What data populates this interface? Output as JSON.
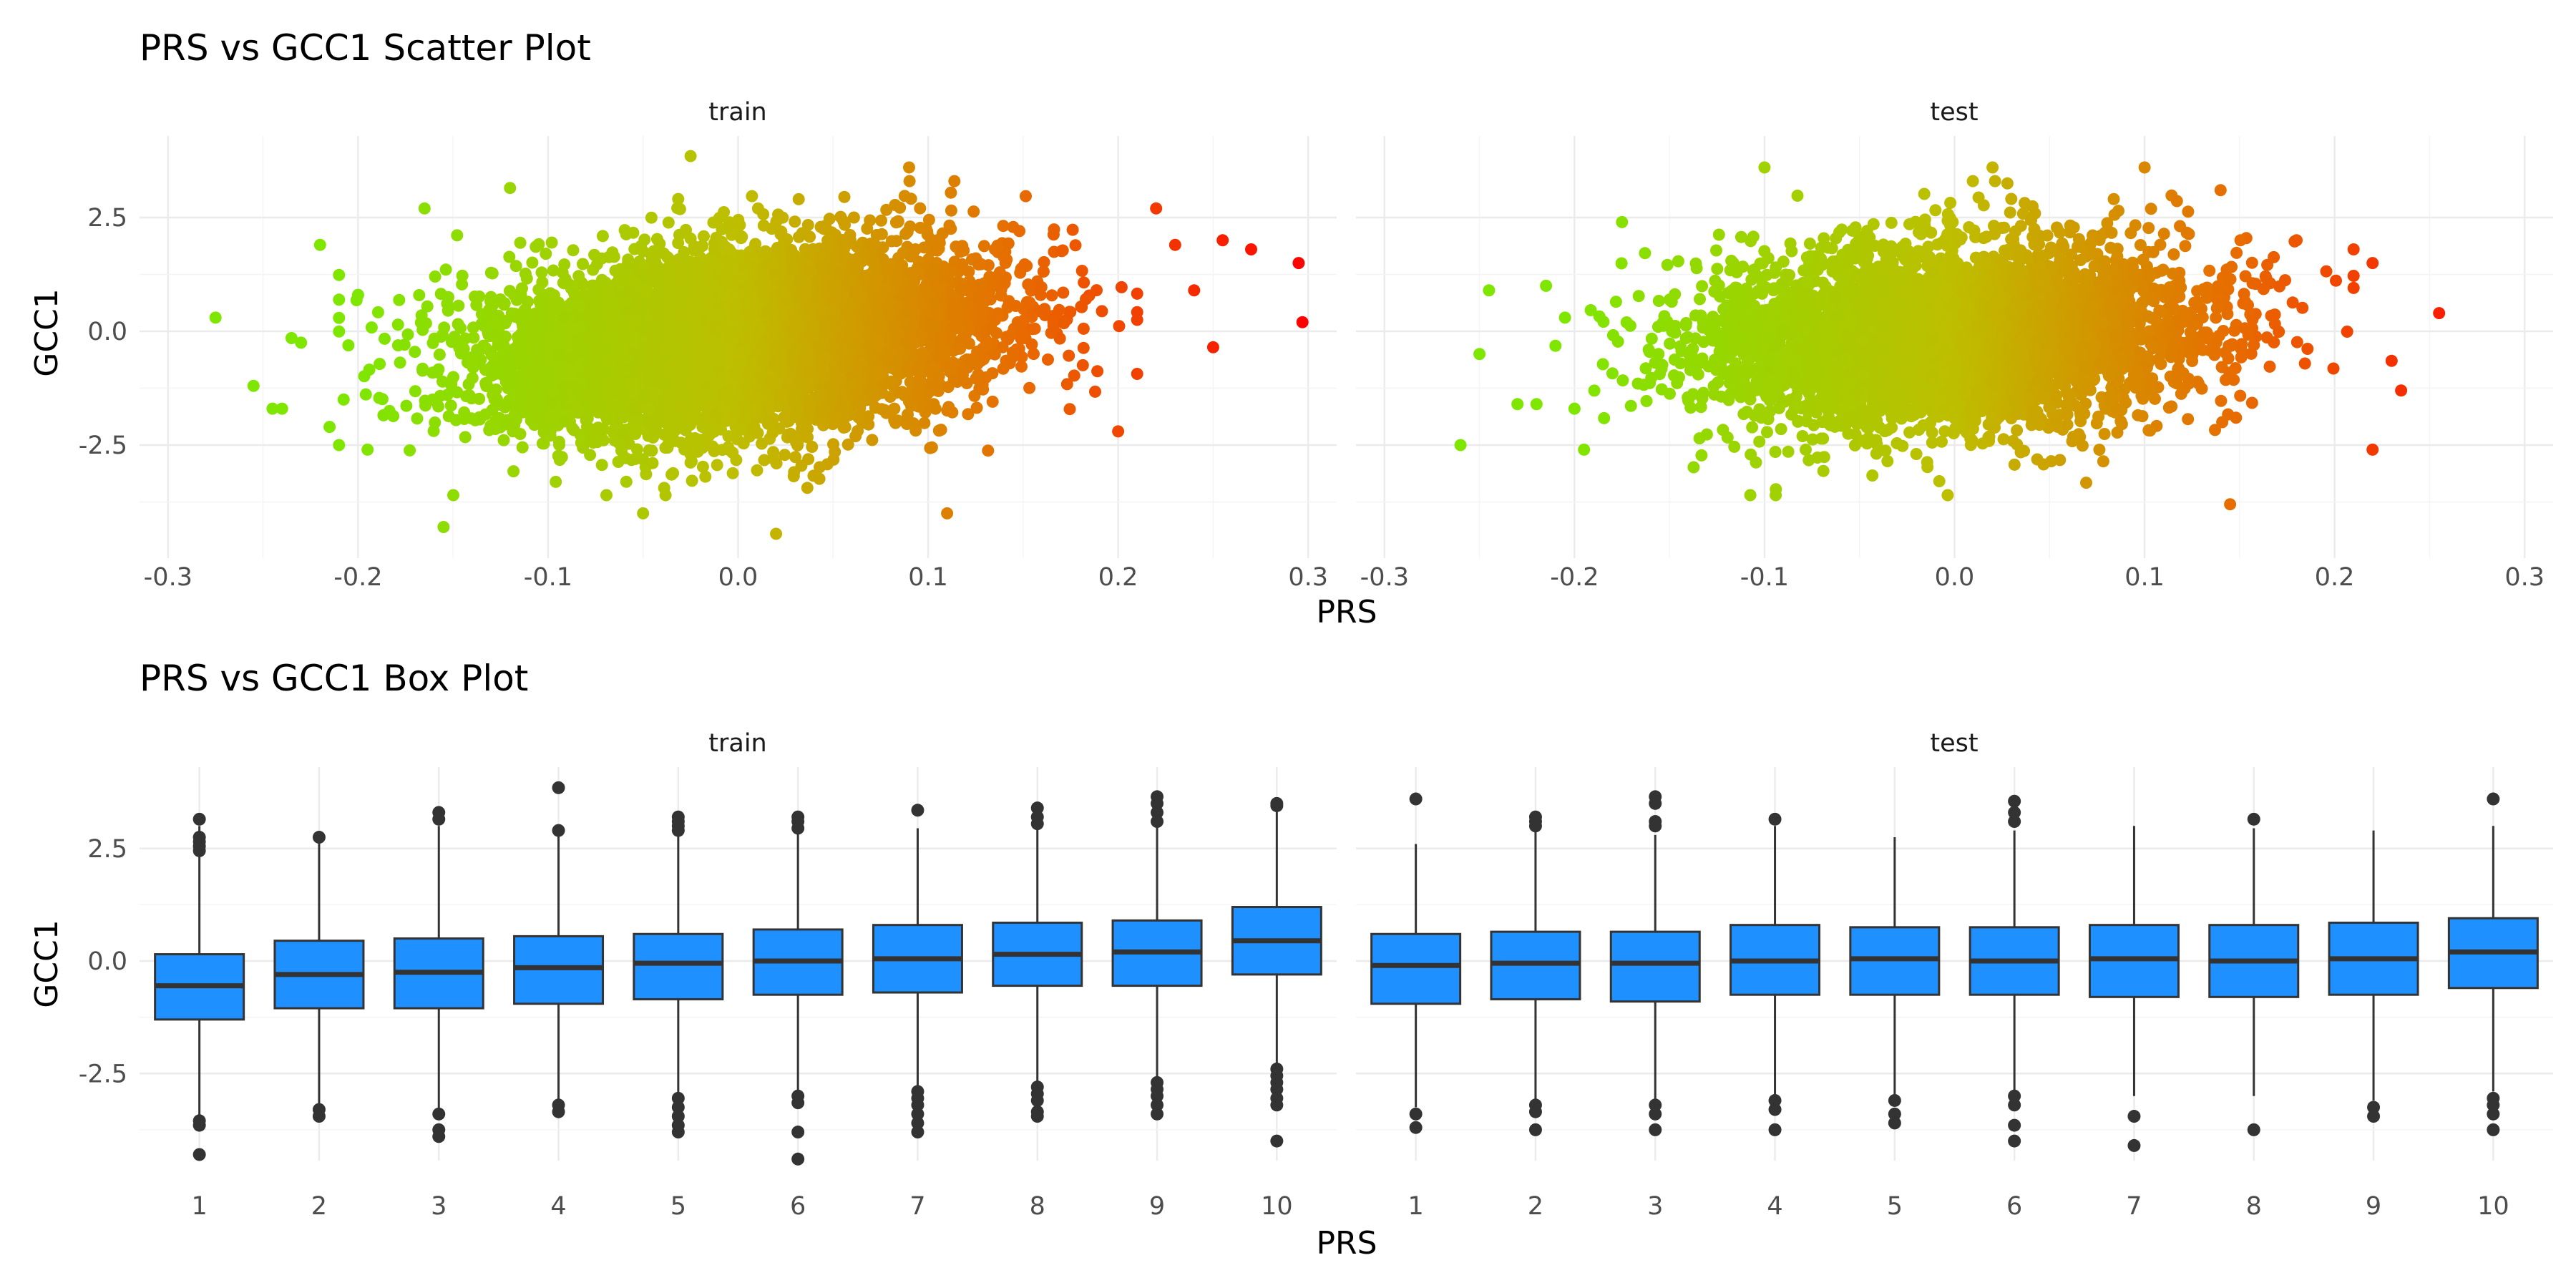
{
  "chart_data": [
    {
      "type": "scatter",
      "title": "PRS vs GCC1 Scatter Plot",
      "xlabel": "PRS",
      "ylabel": "GCC1",
      "xlim": [
        -0.3,
        0.3
      ],
      "ylim": [
        -3.9,
        3.7
      ],
      "x_ticks": [
        "-0.3",
        "-0.2",
        "-0.1",
        "0.0",
        "0.1",
        "0.2",
        "0.3"
      ],
      "y_ticks": [
        "2.5",
        "0.0",
        "-2.5"
      ],
      "grid": true,
      "legend": "none",
      "color_gradient": [
        "#7fe600",
        "#e86a00",
        "#ff0000"
      ],
      "facets": [
        {
          "name": "train",
          "cloud": {
            "x_mean": 0.0,
            "x_sd": 0.065,
            "y_mean": -0.2,
            "y_sd": 1.0,
            "xy_corr": 0.25
          },
          "outliers": [
            {
              "x": -0.275,
              "y": 0.3
            },
            {
              "x": -0.255,
              "y": -1.2
            },
            {
              "x": -0.245,
              "y": -1.7
            },
            {
              "x": -0.24,
              "y": -1.7
            },
            {
              "x": -0.235,
              "y": -0.15
            },
            {
              "x": -0.23,
              "y": -0.25
            },
            {
              "x": -0.22,
              "y": 1.9
            },
            {
              "x": -0.215,
              "y": -2.1
            },
            {
              "x": -0.21,
              "y": -2.5
            },
            {
              "x": -0.2,
              "y": 0.8
            },
            {
              "x": -0.195,
              "y": -2.6
            },
            {
              "x": -0.165,
              "y": 2.7
            },
            {
              "x": -0.155,
              "y": -4.3
            },
            {
              "x": -0.12,
              "y": 3.15
            },
            {
              "x": -0.05,
              "y": -4.0
            },
            {
              "x": -0.025,
              "y": 3.85
            },
            {
              "x": 0.02,
              "y": -4.45
            },
            {
              "x": 0.09,
              "y": 3.6
            },
            {
              "x": 0.11,
              "y": -4.0
            },
            {
              "x": 0.2,
              "y": -2.2
            },
            {
              "x": 0.22,
              "y": 2.7
            },
            {
              "x": 0.23,
              "y": 1.9
            },
            {
              "x": 0.24,
              "y": 0.9
            },
            {
              "x": 0.25,
              "y": -0.35
            },
            {
              "x": 0.255,
              "y": 2.0
            },
            {
              "x": 0.27,
              "y": 1.8
            },
            {
              "x": 0.295,
              "y": 1.5
            },
            {
              "x": 0.297,
              "y": 0.2
            }
          ]
        },
        {
          "name": "test",
          "cloud": {
            "x_mean": 0.0,
            "x_sd": 0.065,
            "y_mean": -0.1,
            "y_sd": 1.0,
            "xy_corr": 0.1
          },
          "outliers": [
            {
              "x": -0.26,
              "y": -2.5
            },
            {
              "x": -0.25,
              "y": -0.5
            },
            {
              "x": -0.245,
              "y": 0.9
            },
            {
              "x": -0.23,
              "y": -1.6
            },
            {
              "x": -0.22,
              "y": -1.6
            },
            {
              "x": -0.215,
              "y": 1.0
            },
            {
              "x": -0.205,
              "y": 0.3
            },
            {
              "x": -0.2,
              "y": -1.7
            },
            {
              "x": -0.195,
              "y": -2.6
            },
            {
              "x": -0.175,
              "y": 2.4
            },
            {
              "x": -0.1,
              "y": 3.6
            },
            {
              "x": 0.02,
              "y": 3.6
            },
            {
              "x": 0.1,
              "y": 3.6
            },
            {
              "x": 0.14,
              "y": 3.1
            },
            {
              "x": 0.145,
              "y": -3.8
            },
            {
              "x": 0.18,
              "y": 2.0
            },
            {
              "x": 0.22,
              "y": 1.5
            },
            {
              "x": 0.22,
              "y": -2.6
            },
            {
              "x": 0.23,
              "y": -0.65
            },
            {
              "x": 0.235,
              "y": -1.3
            },
            {
              "x": 0.255,
              "y": 0.4
            }
          ]
        }
      ]
    },
    {
      "type": "box",
      "title": "PRS vs GCC1 Box Plot",
      "xlabel": "PRS",
      "ylabel": "GCC1",
      "categories": [
        "1",
        "2",
        "3",
        "4",
        "5",
        "6",
        "7",
        "8",
        "9",
        "10"
      ],
      "ylim": [
        -4.7,
        4.0
      ],
      "y_ticks": [
        "2.5",
        "0.0",
        "-2.5"
      ],
      "grid": true,
      "legend": "none",
      "box_color": "#1e90ff",
      "facets": [
        {
          "name": "train",
          "boxes": [
            {
              "q1": -1.3,
              "median": -0.55,
              "q3": 0.15,
              "whisker_low": -3.45,
              "whisker_high": 3.0,
              "outliers": [
                3.15,
                2.75,
                2.65,
                2.55,
                2.45,
                -3.55,
                -3.65,
                -4.3
              ]
            },
            {
              "q1": -1.05,
              "median": -0.3,
              "q3": 0.45,
              "whisker_low": -3.25,
              "whisker_high": 2.7,
              "outliers": [
                2.75,
                -3.3,
                -3.45
              ]
            },
            {
              "q1": -1.05,
              "median": -0.25,
              "q3": 0.5,
              "whisker_low": -3.3,
              "whisker_high": 3.0,
              "outliers": [
                3.3,
                3.15,
                -3.4,
                -3.75,
                -3.9
              ]
            },
            {
              "q1": -0.95,
              "median": -0.15,
              "q3": 0.55,
              "whisker_low": -3.15,
              "whisker_high": 2.8,
              "outliers": [
                3.85,
                2.9,
                -3.2,
                -3.35
              ]
            },
            {
              "q1": -0.85,
              "median": -0.05,
              "q3": 0.6,
              "whisker_low": -3.0,
              "whisker_high": 2.8,
              "outliers": [
                3.2,
                3.1,
                3.0,
                2.9,
                -3.05,
                -3.25,
                -3.45,
                -3.65,
                -3.8
              ]
            },
            {
              "q1": -0.75,
              "median": 0.0,
              "q3": 0.7,
              "whisker_low": -2.95,
              "whisker_high": 2.85,
              "outliers": [
                3.2,
                3.1,
                2.95,
                -3.0,
                -3.15,
                -3.8,
                -4.4
              ]
            },
            {
              "q1": -0.7,
              "median": 0.05,
              "q3": 0.8,
              "whisker_low": -2.8,
              "whisker_high": 2.95,
              "outliers": [
                3.35,
                -2.9,
                -3.05,
                -3.2,
                -3.4,
                -3.6,
                -3.8
              ]
            },
            {
              "q1": -0.55,
              "median": 0.15,
              "q3": 0.85,
              "whisker_low": -2.75,
              "whisker_high": 3.0,
              "outliers": [
                3.4,
                3.2,
                3.05,
                -2.8,
                -2.95,
                -3.1,
                -3.35,
                -3.45
              ]
            },
            {
              "q1": -0.55,
              "median": 0.2,
              "q3": 0.9,
              "whisker_low": -2.65,
              "whisker_high": 3.0,
              "outliers": [
                3.65,
                3.5,
                3.3,
                3.1,
                -2.7,
                -2.85,
                -3.0,
                -3.2,
                -3.4
              ]
            },
            {
              "q1": -0.3,
              "median": 0.45,
              "q3": 1.2,
              "whisker_low": -2.35,
              "whisker_high": 3.4,
              "outliers": [
                3.5,
                3.45,
                -2.4,
                -2.55,
                -2.7,
                -2.85,
                -3.05,
                -3.2,
                -4.0
              ]
            }
          ]
        },
        {
          "name": "test",
          "boxes": [
            {
              "q1": -0.95,
              "median": -0.1,
              "q3": 0.6,
              "whisker_low": -3.25,
              "whisker_high": 2.6,
              "outliers": [
                3.6,
                -3.4,
                -3.7
              ]
            },
            {
              "q1": -0.85,
              "median": -0.05,
              "q3": 0.65,
              "whisker_low": -3.1,
              "whisker_high": 2.9,
              "outliers": [
                3.2,
                3.1,
                3.0,
                -3.2,
                -3.35,
                -3.75
              ]
            },
            {
              "q1": -0.9,
              "median": -0.05,
              "q3": 0.65,
              "whisker_low": -3.1,
              "whisker_high": 2.8,
              "outliers": [
                3.65,
                3.5,
                3.1,
                3.0,
                -3.2,
                -3.4,
                -3.75
              ]
            },
            {
              "q1": -0.75,
              "median": 0.0,
              "q3": 0.8,
              "whisker_low": -3.0,
              "whisker_high": 3.0,
              "outliers": [
                3.15,
                -3.1,
                -3.3,
                -3.75
              ]
            },
            {
              "q1": -0.75,
              "median": 0.05,
              "q3": 0.75,
              "whisker_low": -3.0,
              "whisker_high": 2.75,
              "outliers": [
                -3.1,
                -3.4,
                -3.6
              ]
            },
            {
              "q1": -0.75,
              "median": 0.0,
              "q3": 0.75,
              "whisker_low": -2.95,
              "whisker_high": 2.9,
              "outliers": [
                3.55,
                3.3,
                3.1,
                -3.0,
                -3.2,
                -3.65,
                -4.0
              ]
            },
            {
              "q1": -0.8,
              "median": 0.05,
              "q3": 0.8,
              "whisker_low": -3.0,
              "whisker_high": 3.0,
              "outliers": [
                -3.45,
                -4.1
              ]
            },
            {
              "q1": -0.8,
              "median": 0.0,
              "q3": 0.8,
              "whisker_low": -3.0,
              "whisker_high": 2.95,
              "outliers": [
                3.15,
                -3.75
              ]
            },
            {
              "q1": -0.75,
              "median": 0.05,
              "q3": 0.85,
              "whisker_low": -3.1,
              "whisker_high": 2.9,
              "outliers": [
                -3.25,
                -3.45
              ]
            },
            {
              "q1": -0.6,
              "median": 0.2,
              "q3": 0.95,
              "whisker_low": -2.9,
              "whisker_high": 3.0,
              "outliers": [
                3.6,
                -3.05,
                -3.2,
                -3.4,
                -3.75
              ]
            }
          ]
        }
      ]
    }
  ]
}
